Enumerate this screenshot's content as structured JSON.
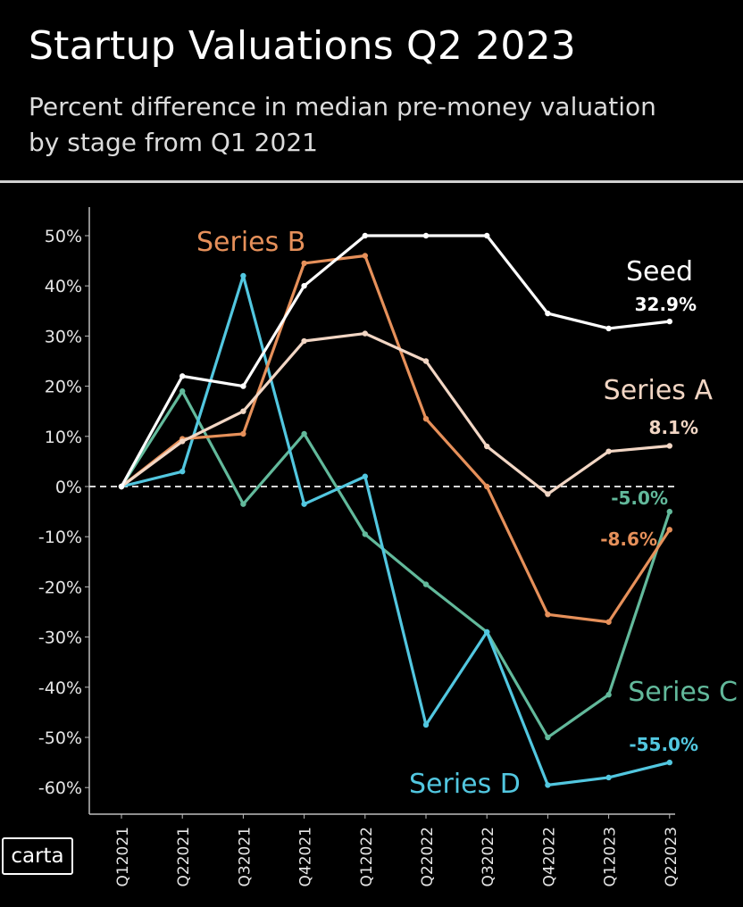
{
  "header": {
    "title": "Startup Valuations Q2 2023",
    "subtitle": "Percent difference in median pre-money valuation by stage from Q1 2021"
  },
  "logo": {
    "text": "carta"
  },
  "colors": {
    "background": "#000000",
    "axis": "#bdbdbd",
    "zero_line": "#d8d8d8",
    "seed": "#ffffff",
    "series_a": "#f2d6c4",
    "series_b": "#e6905a",
    "series_c": "#62b99b",
    "series_d": "#52c7e0"
  },
  "chart_data": {
    "type": "line",
    "title": "Startup Valuations Q2 2023",
    "subtitle": "Percent difference in median pre-money valuation by stage from Q1 2021",
    "categories": [
      "Q1 2021",
      "Q2 2021",
      "Q3 2021",
      "Q4 2021",
      "Q1 2022",
      "Q2 2022",
      "Q3 2022",
      "Q4 2022",
      "Q1 2023",
      "Q2 2023"
    ],
    "ylim": [
      -65,
      55
    ],
    "yticks": [
      50,
      40,
      30,
      20,
      10,
      0,
      -10,
      -20,
      -30,
      -40,
      -50,
      -60
    ],
    "ytick_labels": [
      "50%",
      "40%",
      "30%",
      "20%",
      "10%",
      "0%",
      "-10%",
      "-20%",
      "-30%",
      "-40%",
      "-50%",
      "-60%"
    ],
    "grid": false,
    "zero_line": "dashed",
    "legend": "direct labels at line ends",
    "series": [
      {
        "name": "Seed",
        "color": "#ffffff",
        "end_label": "32.9%",
        "values": [
          0,
          22,
          20,
          40,
          50,
          50,
          50,
          34.5,
          31.5,
          32.9
        ]
      },
      {
        "name": "Series A",
        "color": "#f2d6c4",
        "end_label": "8.1%",
        "values": [
          0,
          9,
          15,
          29,
          30.5,
          25,
          8,
          -1.5,
          7,
          8.1
        ]
      },
      {
        "name": "Series B",
        "color": "#e6905a",
        "end_label": "-8.6%",
        "values": [
          0,
          9.5,
          10.5,
          44.5,
          46,
          13.5,
          0,
          -25.5,
          -27,
          -8.6
        ]
      },
      {
        "name": "Series C",
        "color": "#62b99b",
        "end_label": "-5.0%",
        "values": [
          0,
          19,
          -3.5,
          10.5,
          -9.5,
          -19.5,
          -29,
          -50,
          -41.5,
          -5.0
        ]
      },
      {
        "name": "Series D",
        "color": "#52c7e0",
        "end_label": "-55.0%",
        "values": [
          0,
          3,
          42,
          -3.5,
          2,
          -47.5,
          -29,
          -59.5,
          -58,
          -55.0
        ]
      }
    ]
  }
}
